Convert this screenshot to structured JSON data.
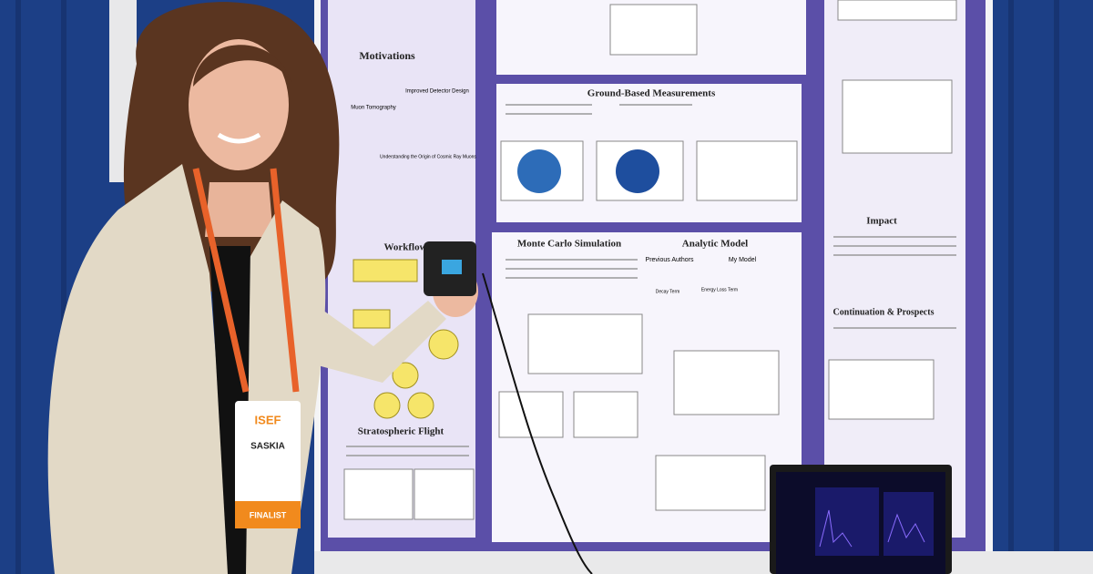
{
  "poster": {
    "sections": {
      "motivations": "Motivations",
      "muon_tomography": "Muon Tomography",
      "improved_design": "Improved Detector Design",
      "origin": "Understanding the Origin of Cosmic Ray Muons",
      "workflow": "Workflow",
      "stratospheric": "Stratospheric Flight",
      "ground": "Ground-Based Measurements",
      "monte_carlo": "Monte Carlo Simulation",
      "analytic": "Analytic Model",
      "previous_authors": "Previous Authors",
      "my_model": "My Model",
      "decay_term": "Decay Term",
      "energy_loss": "Energy Loss Term",
      "impact": "Impact",
      "continuation": "Continuation & Prospects"
    }
  },
  "badge": {
    "logo": "ISEF",
    "name": "SASKIA",
    "label": "FINALIST"
  }
}
